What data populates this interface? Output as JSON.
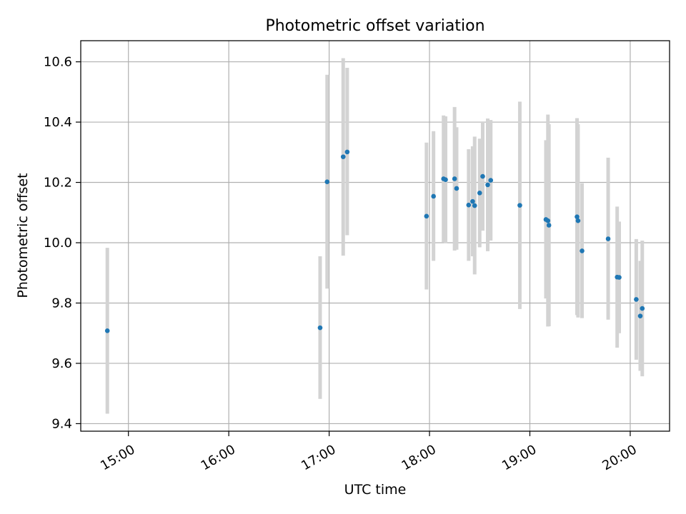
{
  "chart_data": {
    "type": "scatter",
    "title": "Photometric offset variation",
    "xlabel": "UTC time",
    "ylabel": "Photometric offset",
    "x_unit": "hours (UTC, decimal)",
    "xlim": [
      14.525,
      20.392
    ],
    "ylim": [
      9.375,
      10.67
    ],
    "grid": true,
    "x_ticks": [
      {
        "value": 15,
        "label": "15:00"
      },
      {
        "value": 16,
        "label": "16:00"
      },
      {
        "value": 17,
        "label": "17:00"
      },
      {
        "value": 18,
        "label": "18:00"
      },
      {
        "value": 19,
        "label": "19:00"
      },
      {
        "value": 20,
        "label": "20:00"
      }
    ],
    "y_ticks": [
      {
        "value": 9.4,
        "label": "9.4"
      },
      {
        "value": 9.6,
        "label": "9.6"
      },
      {
        "value": 9.8,
        "label": "9.8"
      },
      {
        "value": 10.0,
        "label": "10.0"
      },
      {
        "value": 10.2,
        "label": "10.2"
      },
      {
        "value": 10.4,
        "label": "10.4"
      },
      {
        "value": 10.6,
        "label": "10.6"
      }
    ],
    "colors": {
      "point": "#1f77b4",
      "errorbar": "#d3d3d3",
      "grid": "#b0b0b0"
    },
    "points": [
      {
        "x": 14.79,
        "y": 9.708,
        "ylow": 9.433,
        "yhigh": 9.983
      },
      {
        "x": 16.91,
        "y": 9.718,
        "ylow": 9.482,
        "yhigh": 9.955
      },
      {
        "x": 16.98,
        "y": 10.202,
        "ylow": 9.848,
        "yhigh": 10.557
      },
      {
        "x": 17.14,
        "y": 10.285,
        "ylow": 9.957,
        "yhigh": 10.612
      },
      {
        "x": 17.18,
        "y": 10.301,
        "ylow": 10.025,
        "yhigh": 10.58
      },
      {
        "x": 17.97,
        "y": 10.088,
        "ylow": 9.845,
        "yhigh": 10.332
      },
      {
        "x": 18.04,
        "y": 10.154,
        "ylow": 9.94,
        "yhigh": 10.37
      },
      {
        "x": 18.14,
        "y": 10.212,
        "ylow": 10.002,
        "yhigh": 10.422
      },
      {
        "x": 18.16,
        "y": 10.209,
        "ylow": 9.999,
        "yhigh": 10.419
      },
      {
        "x": 18.25,
        "y": 10.212,
        "ylow": 9.974,
        "yhigh": 10.45
      },
      {
        "x": 18.27,
        "y": 10.18,
        "ylow": 9.977,
        "yhigh": 10.383
      },
      {
        "x": 18.39,
        "y": 10.125,
        "ylow": 9.94,
        "yhigh": 10.31
      },
      {
        "x": 18.43,
        "y": 10.137,
        "ylow": 9.955,
        "yhigh": 10.32
      },
      {
        "x": 18.45,
        "y": 10.123,
        "ylow": 9.895,
        "yhigh": 10.352
      },
      {
        "x": 18.5,
        "y": 10.165,
        "ylow": 9.985,
        "yhigh": 10.345
      },
      {
        "x": 18.53,
        "y": 10.22,
        "ylow": 10.04,
        "yhigh": 10.4
      },
      {
        "x": 18.58,
        "y": 10.192,
        "ylow": 9.972,
        "yhigh": 10.412
      },
      {
        "x": 18.61,
        "y": 10.207,
        "ylow": 10.007,
        "yhigh": 10.407
      },
      {
        "x": 18.9,
        "y": 10.124,
        "ylow": 9.78,
        "yhigh": 10.468
      },
      {
        "x": 19.16,
        "y": 10.077,
        "ylow": 9.815,
        "yhigh": 10.34
      },
      {
        "x": 19.18,
        "y": 10.073,
        "ylow": 9.722,
        "yhigh": 10.425
      },
      {
        "x": 19.19,
        "y": 10.058,
        "ylow": 9.723,
        "yhigh": 10.393
      },
      {
        "x": 19.47,
        "y": 10.086,
        "ylow": 9.76,
        "yhigh": 10.413
      },
      {
        "x": 19.48,
        "y": 10.073,
        "ylow": 9.752,
        "yhigh": 10.393
      },
      {
        "x": 19.52,
        "y": 9.973,
        "ylow": 9.75,
        "yhigh": 10.197
      },
      {
        "x": 19.78,
        "y": 10.013,
        "ylow": 9.745,
        "yhigh": 10.282
      },
      {
        "x": 19.87,
        "y": 9.886,
        "ylow": 9.652,
        "yhigh": 10.12
      },
      {
        "x": 19.89,
        "y": 9.885,
        "ylow": 9.7,
        "yhigh": 10.07
      },
      {
        "x": 20.06,
        "y": 9.812,
        "ylow": 9.612,
        "yhigh": 10.012
      },
      {
        "x": 20.1,
        "y": 9.757,
        "ylow": 9.575,
        "yhigh": 9.94
      },
      {
        "x": 20.12,
        "y": 9.782,
        "ylow": 9.557,
        "yhigh": 10.007
      }
    ]
  }
}
